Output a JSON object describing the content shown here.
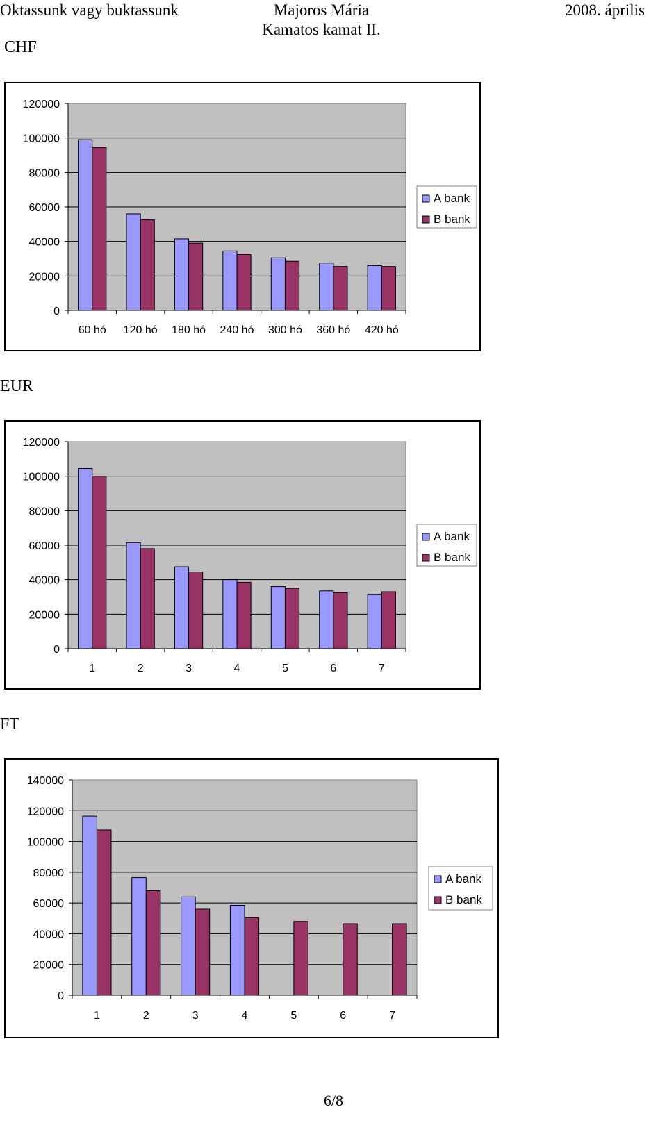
{
  "header": {
    "left": "Oktassunk vagy buktassunk",
    "center_line1": "Majoros Mária",
    "center_line2": "Kamatos kamat II.",
    "right": "2008. április"
  },
  "colors": {
    "series_a": "#9999ff",
    "series_b": "#993366",
    "plot_bg": "#c0c0c0"
  },
  "sections": [
    "CHF",
    "EUR",
    "FT"
  ],
  "footer": {
    "page": "6/8"
  },
  "chart_data": [
    {
      "type": "bar",
      "title": "",
      "categories": [
        "60 hó",
        "120 hó",
        "180 hó",
        "240 hó",
        "300 hó",
        "360 hó",
        "420 hó"
      ],
      "series": [
        {
          "name": "A bank",
          "values": [
            99000,
            56000,
            41500,
            34500,
            30500,
            27500,
            26000
          ]
        },
        {
          "name": "B bank",
          "values": [
            94500,
            52500,
            39000,
            32500,
            28500,
            25500,
            25500
          ]
        }
      ],
      "yticks": [
        "120000",
        "100000",
        "80000",
        "60000",
        "40000",
        "20000",
        "0"
      ],
      "ylim": [
        0,
        120000
      ],
      "grid": true,
      "legend": "right"
    },
    {
      "type": "bar",
      "title": "",
      "categories": [
        "1",
        "2",
        "3",
        "4",
        "5",
        "6",
        "7"
      ],
      "series": [
        {
          "name": "A bank",
          "values": [
            104500,
            61500,
            47500,
            40000,
            36000,
            33500,
            31500
          ]
        },
        {
          "name": "B bank",
          "values": [
            100000,
            58000,
            44500,
            38500,
            35000,
            32500,
            33000
          ]
        }
      ],
      "yticks": [
        "120000",
        "100000",
        "80000",
        "60000",
        "40000",
        "20000",
        "0"
      ],
      "ylim": [
        0,
        120000
      ],
      "grid": true,
      "legend": "right"
    },
    {
      "type": "bar",
      "title": "",
      "categories": [
        "1",
        "2",
        "3",
        "4",
        "5",
        "6",
        "7"
      ],
      "series": [
        {
          "name": "A bank",
          "values": [
            116500,
            76500,
            64000,
            58500,
            null,
            null,
            null
          ]
        },
        {
          "name": "B bank",
          "values": [
            107500,
            68000,
            56000,
            50500,
            48000,
            46500,
            46500
          ]
        }
      ],
      "yticks": [
        "140000",
        "120000",
        "100000",
        "80000",
        "60000",
        "40000",
        "20000",
        "0"
      ],
      "ylim": [
        0,
        140000
      ],
      "grid": true,
      "legend": "right"
    }
  ]
}
